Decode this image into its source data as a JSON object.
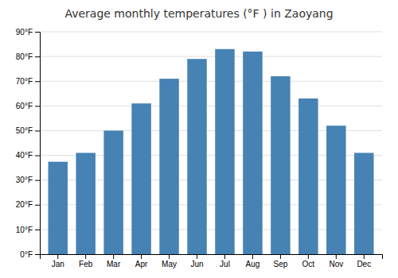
{
  "chart_data": {
    "type": "bar",
    "title": "Average monthly temperatures (°F ) in Zaoyang",
    "categories": [
      "Jan",
      "Feb",
      "Mar",
      "Apr",
      "May",
      "Jun",
      "Jul",
      "Aug",
      "Sep",
      "Oct",
      "Nov",
      "Dec"
    ],
    "values": [
      37.4,
      41.0,
      50.0,
      61.0,
      71.0,
      79.0,
      83.0,
      82.0,
      72.0,
      63.0,
      52.0,
      41.0
    ],
    "ylim": [
      0,
      90
    ],
    "yticks": [
      {
        "value": 0,
        "label": "0°F"
      },
      {
        "value": 10,
        "label": "10°F"
      },
      {
        "value": 20,
        "label": "20°F"
      },
      {
        "value": 30,
        "label": "30°F"
      },
      {
        "value": 40,
        "label": "40°F"
      },
      {
        "value": 50,
        "label": "50°F"
      },
      {
        "value": 60,
        "label": "60°F"
      },
      {
        "value": 70,
        "label": "70°F"
      },
      {
        "value": 80,
        "label": "80°F"
      },
      {
        "value": 90,
        "label": "90°F"
      }
    ],
    "grid": true
  }
}
